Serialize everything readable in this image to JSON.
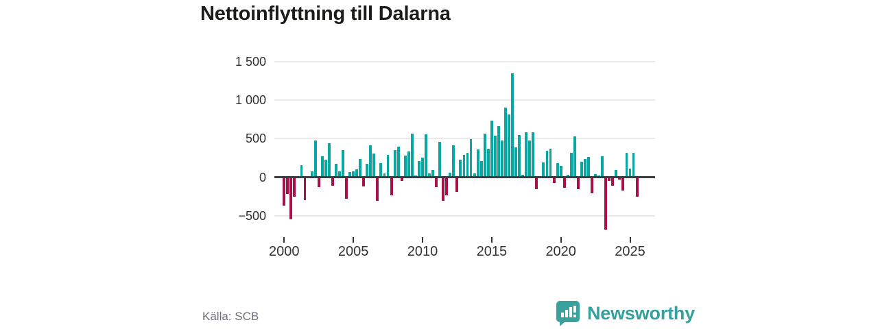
{
  "title": "Nettoinflyttning till Dalarna",
  "source": "Källa: SCB",
  "brand": {
    "name": "Newsworthy",
    "logo_icon": "speech-bubble-bar-chart",
    "color": "#35a09c"
  },
  "chart_data": {
    "type": "bar",
    "title": "Nettoinflyttning till Dalarna",
    "xlabel": "",
    "ylabel": "",
    "frequency": "quarterly",
    "start_year": 2000,
    "start_quarter": 1,
    "values": [
      -370,
      -220,
      -550,
      -255,
      -15,
      160,
      -295,
      -15,
      75,
      480,
      -130,
      275,
      225,
      440,
      -115,
      170,
      80,
      350,
      -280,
      70,
      80,
      105,
      240,
      -120,
      170,
      415,
      310,
      -310,
      180,
      45,
      290,
      -235,
      350,
      395,
      -50,
      280,
      335,
      565,
      20,
      210,
      250,
      555,
      45,
      90,
      -125,
      460,
      -310,
      -240,
      60,
      415,
      -190,
      230,
      285,
      320,
      490,
      50,
      360,
      210,
      565,
      365,
      735,
      535,
      660,
      475,
      905,
      810,
      1350,
      385,
      550,
      35,
      580,
      475,
      585,
      -160,
      -10,
      190,
      340,
      365,
      -80,
      180,
      150,
      -140,
      30,
      320,
      525,
      -160,
      200,
      240,
      260,
      -205,
      40,
      20,
      275,
      -680,
      -45,
      -115,
      90,
      -30,
      -175,
      320,
      110,
      315,
      -255
    ],
    "ylim": [
      -700,
      1500
    ],
    "grid": true,
    "gridline_values": [
      1500,
      1000,
      500,
      0,
      -500
    ],
    "ytick_labels": [
      {
        "value": 1500,
        "label": "1 500"
      },
      {
        "value": 1000,
        "label": "1 000"
      },
      {
        "value": 500,
        "label": "500"
      },
      {
        "value": 0,
        "label": "0"
      },
      {
        "value": -500,
        "label": "−500"
      }
    ],
    "xticks": [
      {
        "year": 2000,
        "label": "2000"
      },
      {
        "year": 2005,
        "label": "2005"
      },
      {
        "year": 2010,
        "label": "2010"
      },
      {
        "year": 2015,
        "label": "2015"
      },
      {
        "year": 2020,
        "label": "2020"
      },
      {
        "year": 2025,
        "label": "2025"
      }
    ],
    "colors": {
      "positive": "#0aa6a1",
      "negative": "#a51148"
    },
    "legend": "none"
  }
}
